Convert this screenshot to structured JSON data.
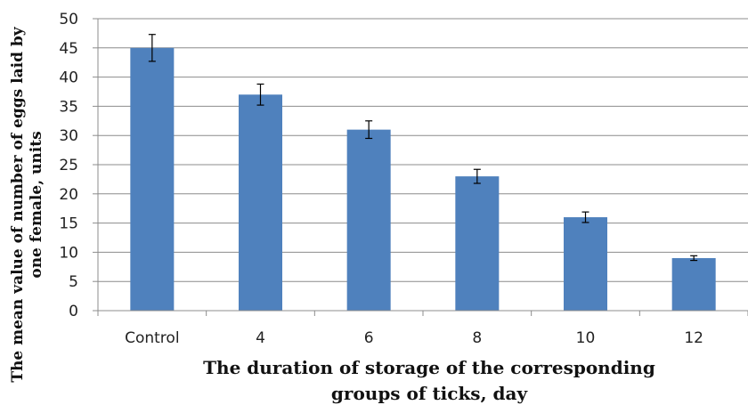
{
  "chart_data": {
    "type": "bar",
    "categories": [
      "Control",
      "4",
      "6",
      "8",
      "10",
      "12"
    ],
    "values": [
      45,
      37,
      31,
      23,
      16,
      9
    ],
    "errors": [
      2.3,
      1.8,
      1.5,
      1.2,
      0.9,
      0.4
    ],
    "xlabel_lines": [
      "The duration of storage of the corresponding",
      "groups of ticks, day"
    ],
    "ylabel_lines": [
      "The mean value of number of eggs laid by",
      "one female, units"
    ],
    "ylim": [
      0,
      50
    ],
    "yticks": [
      "0",
      "5",
      "10",
      "15",
      "20",
      "25",
      "30",
      "35",
      "40",
      "45",
      "50"
    ],
    "grid": true,
    "colors": {
      "bar": "#4f81bd",
      "grid": "#8c8c8c",
      "axis": "#8c8c8c",
      "error_bar": "#000000"
    }
  }
}
